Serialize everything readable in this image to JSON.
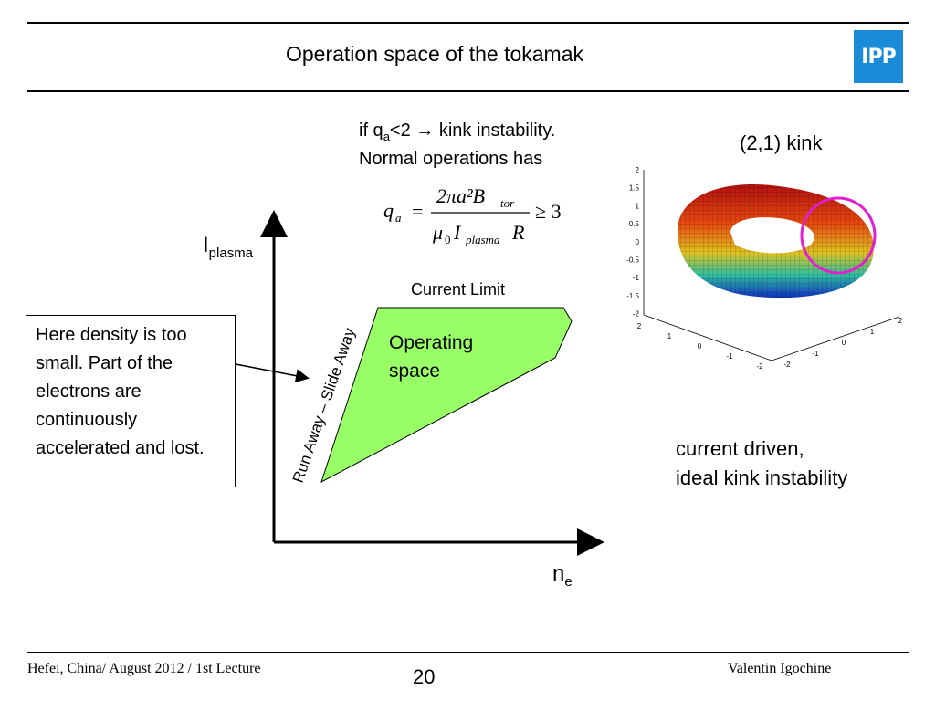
{
  "header": {
    "title": "Operation space of the tokamak",
    "logo_text": "IPP"
  },
  "formula": {
    "qa_prefix": "if q",
    "qa_sub": "a",
    "qa_suffix": "<2 →  kink instability.",
    "normal_line": "Normal operations has",
    "lhs_q": "q",
    "lhs_sub": "a",
    "equals": "=",
    "numerator": "2πa²B",
    "numerator_sub": "tor",
    "denominator_mu": "μ",
    "denominator_mu_sub": "0",
    "denominator_I": "I",
    "denominator_I_sub": "plasma",
    "denominator_R": "R",
    "inequality": "≥ 3"
  },
  "diagram": {
    "y_axis_label": "I",
    "y_axis_sub": "plasma",
    "x_axis_label": "n",
    "x_axis_sub": "e",
    "current_limit": "Current Limit",
    "region_line1": "Operating",
    "region_line2": "space",
    "runaway_label": "Run Away – Slide Away",
    "region_fill": "#99ff66"
  },
  "note": {
    "text": "Here density is too small. Part of the electrons are continuously accelerated and lost."
  },
  "kink": {
    "label": "(2,1) kink",
    "caption_line1": "current driven,",
    "caption_line2": "ideal kink instability",
    "ring_color": "#e020d0",
    "plot_ticks_z": [
      "2",
      "1.5",
      "1",
      "0.5",
      "0",
      "-0.5",
      "-1",
      "-1.5",
      "-2"
    ],
    "plot_ticks_x": [
      "2",
      "1",
      "0",
      "-1",
      "-2"
    ],
    "plot_ticks_y": [
      "-2",
      "-1",
      "0",
      "1",
      "2"
    ]
  },
  "footer": {
    "left": "Hefei, China/ August 2012 / 1st Lecture",
    "page": "20",
    "right": "Valentin Igochine"
  }
}
